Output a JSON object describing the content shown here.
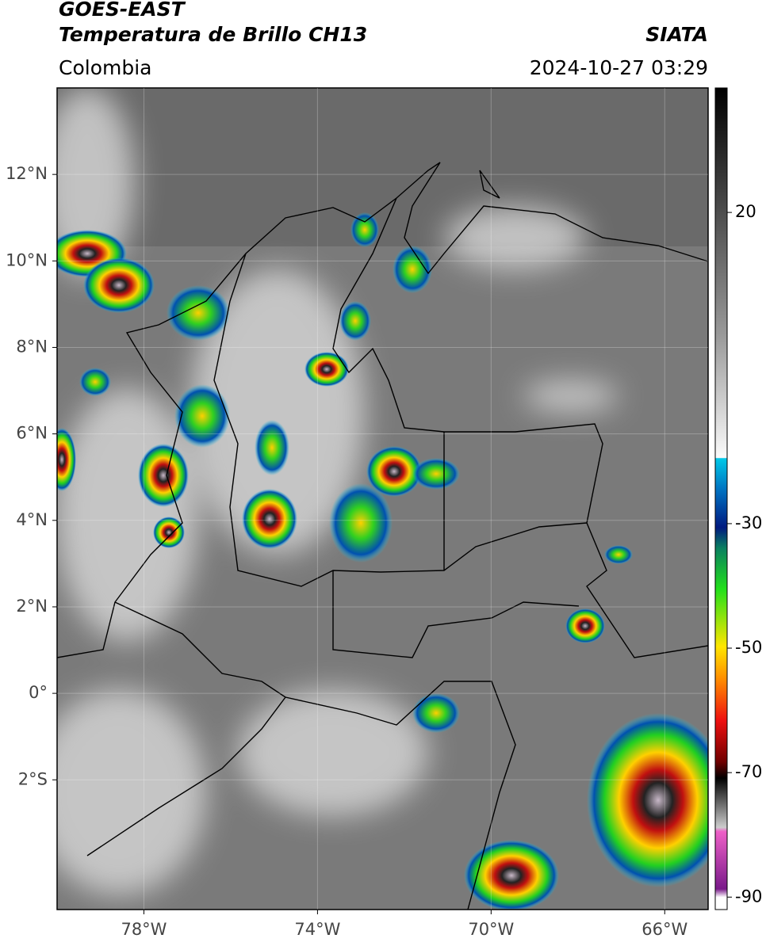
{
  "header": {
    "title": "GOES-EAST",
    "subtitle": "Temperatura de Brillo CH13",
    "source": "SIATA",
    "region": "Colombia",
    "datetime": "2024-10-27 03:29"
  },
  "map": {
    "xlim": [
      -80,
      -65
    ],
    "ylim": [
      -5,
      14
    ],
    "xticks": [
      {
        "value": -78,
        "label": "78°W"
      },
      {
        "value": -74,
        "label": "74°W"
      },
      {
        "value": -70,
        "label": "70°W"
      },
      {
        "value": -66,
        "label": "66°W"
      }
    ],
    "yticks": [
      {
        "value": 12,
        "label": "12°N"
      },
      {
        "value": 10,
        "label": "10°N"
      },
      {
        "value": 8,
        "label": "8°N"
      },
      {
        "value": 6,
        "label": "6°N"
      },
      {
        "value": 4,
        "label": "4°N"
      },
      {
        "value": 2,
        "label": "2°N"
      },
      {
        "value": 0,
        "label": "0°"
      },
      {
        "value": -2,
        "label": "2°S"
      }
    ],
    "grid": true
  },
  "colorbar": {
    "lim": [
      -92,
      40
    ],
    "ticks": [
      20,
      -30,
      -50,
      -70,
      -90
    ]
  }
}
